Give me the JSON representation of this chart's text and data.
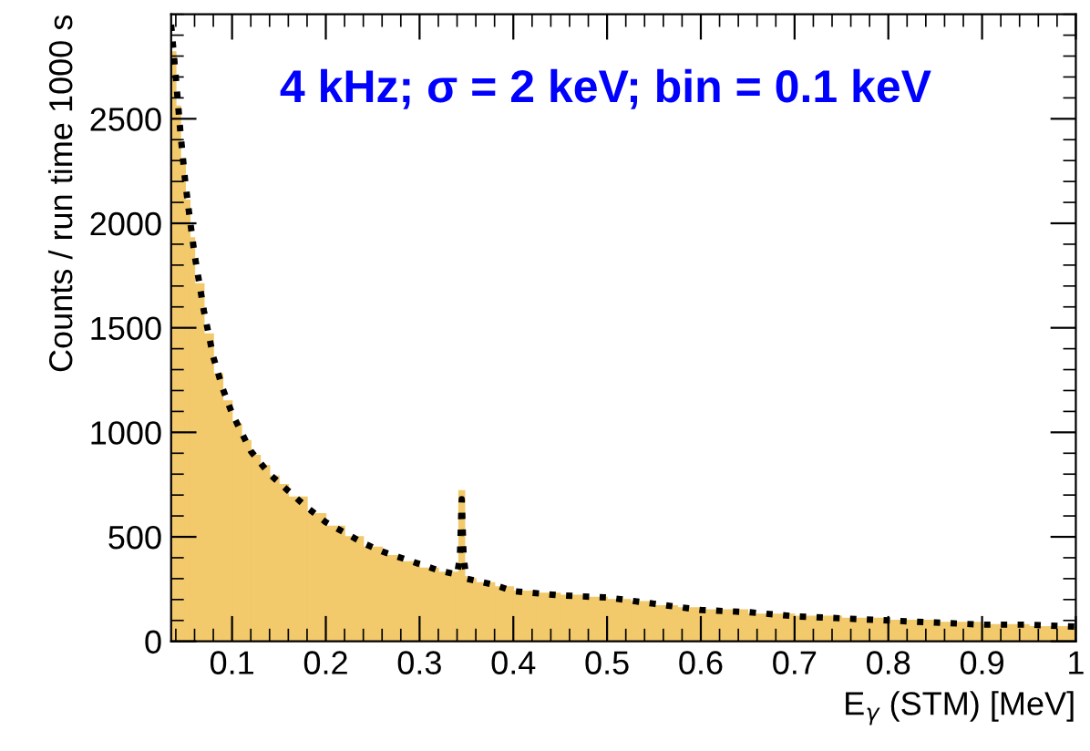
{
  "chart_data": {
    "type": "histogram",
    "xlabel": "E$_{γ}$ (STM) [MeV]",
    "ylabel": "Counts / run time 1000 s",
    "annotations": [
      "4 kHz; σ = 2 keV; bin = 0.1 keV"
    ],
    "bins": [
      0.035,
      0.04,
      0.045,
      0.05,
      0.055,
      0.06,
      0.07,
      0.08,
      0.09,
      0.1,
      0.11,
      0.12,
      0.13,
      0.14,
      0.15,
      0.16,
      0.18,
      0.2,
      0.22,
      0.24,
      0.26,
      0.28,
      0.3,
      0.32,
      0.34,
      0.342,
      0.348,
      0.35,
      0.36,
      0.38,
      0.4,
      0.425,
      0.45,
      0.475,
      0.5,
      0.525,
      0.55,
      0.575,
      0.6,
      0.65,
      0.7,
      0.75,
      0.8,
      0.85,
      0.9,
      0.95,
      1.0
    ],
    "values": [
      2820,
      2560,
      2310,
      2110,
      1930,
      1710,
      1470,
      1280,
      1150,
      1040,
      960,
      890,
      840,
      790,
      750,
      690,
      610,
      550,
      500,
      450,
      410,
      380,
      350,
      330,
      330,
      720,
      310,
      300,
      280,
      260,
      240,
      230,
      220,
      210,
      200,
      190,
      170,
      160,
      150,
      130,
      120,
      110,
      100,
      90,
      80,
      70
    ],
    "color": "#f2c96b",
    "series": [
      {
        "type": "line",
        "color": "#000000",
        "line_style": "dotted",
        "x": [
          0.035,
          0.04,
          0.045,
          0.05,
          0.055,
          0.06,
          0.07,
          0.08,
          0.09,
          0.1,
          0.12,
          0.14,
          0.16,
          0.18,
          0.2,
          0.22,
          0.24,
          0.26,
          0.28,
          0.3,
          0.32,
          0.34,
          0.343,
          0.345,
          0.347,
          0.35,
          0.36,
          0.38,
          0.4,
          0.45,
          0.5,
          0.55,
          0.6,
          0.65,
          0.7,
          0.75,
          0.8,
          0.85,
          0.9,
          0.95,
          1.0
        ],
        "values": [
          2950,
          2700,
          2430,
          2200,
          2020,
          1850,
          1580,
          1360,
          1210,
          1090,
          910,
          800,
          720,
          640,
          570,
          520,
          470,
          430,
          400,
          370,
          340,
          320,
          400,
          680,
          400,
          300,
          290,
          270,
          240,
          220,
          210,
          180,
          150,
          140,
          120,
          110,
          100,
          90,
          80,
          80,
          70
        ]
      }
    ],
    "xlim": [
      0.035,
      1.0
    ],
    "ylim": [
      0,
      3000
    ],
    "xticks": [
      0.1,
      0.2,
      0.3,
      0.4,
      0.5,
      0.6,
      0.7,
      0.8,
      0.9,
      1
    ],
    "yticks": [
      0,
      500,
      1000,
      1500,
      2000,
      2500
    ],
    "grid": false,
    "legend": false
  }
}
